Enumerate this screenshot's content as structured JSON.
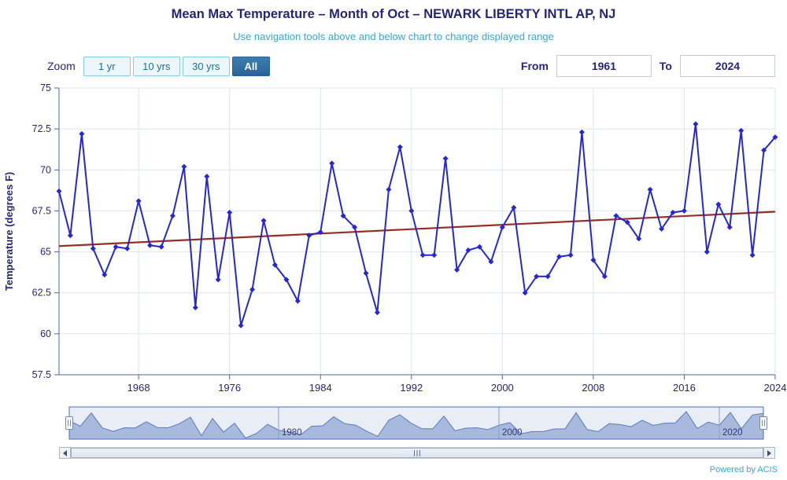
{
  "header": {
    "title": "Mean Max Temperature – Month of Oct – NEWARK LIBERTY INTL AP, NJ",
    "subtitle": "Use navigation tools above and below chart to change displayed range"
  },
  "zoom": {
    "label": "Zoom",
    "buttons": [
      {
        "label": "1 yr",
        "selected": false
      },
      {
        "label": "10 yrs",
        "selected": false
      },
      {
        "label": "30 yrs",
        "selected": false
      },
      {
        "label": "All",
        "selected": true
      }
    ]
  },
  "range": {
    "from_label": "From",
    "from_value": "1961",
    "to_label": "To",
    "to_value": "2024"
  },
  "page": {
    "powered_by": "Powered by ACIS"
  },
  "chart_data": {
    "type": "line",
    "title": "Mean Max Temperature – Month of Oct – NEWARK LIBERTY INTL AP, NJ",
    "subtitle": "Use navigation tools above and below chart to change displayed range",
    "xlabel": "",
    "ylabel": "Temperature (degrees F)",
    "xlim": [
      1961,
      2024
    ],
    "ylim": [
      57.5,
      75
    ],
    "yticks": [
      57.5,
      60,
      62.5,
      65,
      67.5,
      70,
      72.5,
      75
    ],
    "xticks": [
      1968,
      1976,
      1984,
      1992,
      2000,
      2008,
      2016,
      2024
    ],
    "navigator_ticks": [
      1980,
      2000,
      2020
    ],
    "grid": true,
    "legend": "none",
    "colors": {
      "grid": "#dbe5f1",
      "axis": "#5265a3",
      "text": "#252578",
      "series": "#2626d8",
      "trend": "#952f24",
      "nav_fill": "#b3c2e1",
      "nav_line": "#5b79bb",
      "nav_outline": "#4d6db3",
      "nav_grid": "#8fa3cf",
      "nav_mask": "rgba(102,133,194,0.15)"
    },
    "series": [
      {
        "name": "Mean Max Temperature (degrees F)",
        "color": "#2626d8",
        "x_start": 1961,
        "values": [
          68.7,
          66.0,
          72.2,
          65.2,
          63.6,
          65.3,
          65.2,
          68.1,
          65.4,
          65.3,
          67.2,
          70.2,
          61.6,
          69.6,
          63.3,
          67.4,
          60.5,
          62.7,
          66.9,
          64.2,
          63.3,
          62.0,
          66.0,
          66.2,
          70.4,
          67.2,
          66.5,
          63.7,
          61.3,
          68.8,
          71.4,
          67.5,
          64.8,
          64.8,
          70.7,
          63.9,
          65.1,
          65.3,
          64.4,
          66.5,
          67.7,
          62.5,
          63.5,
          63.5,
          64.7,
          64.8,
          72.3,
          64.5,
          63.5,
          67.2,
          66.8,
          65.8,
          68.8,
          66.4,
          67.4,
          67.5,
          72.8,
          65.0,
          67.9,
          66.5,
          72.4,
          64.8,
          71.2,
          72.0
        ]
      },
      {
        "name": "Trend",
        "color": "#952f24",
        "x": [
          1961,
          2024
        ],
        "values": [
          65.35,
          67.45
        ]
      }
    ]
  }
}
